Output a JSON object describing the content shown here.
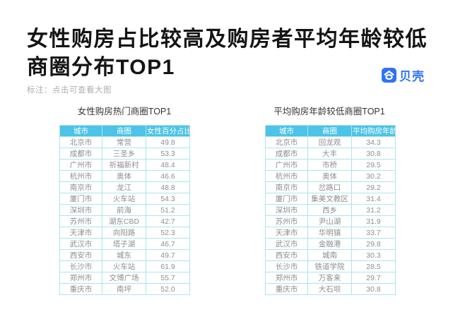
{
  "header": {
    "title_line1": "女性购房占比较高及购房者平均年龄较低",
    "title_line2": "商圈分布TOP1",
    "brand": "贝壳",
    "note": "标注：点击可查看大图"
  },
  "colors": {
    "brand_blue": "#3072F6",
    "table_header_bg": "#4CC3E7",
    "table_border": "#ABE5F0",
    "cell_text": "#8E8E8E",
    "title_text": "#141414",
    "note_text": "#AFAFAF"
  },
  "chart_data": [
    {
      "type": "table",
      "title": "女性购房热门商圈TOP1",
      "columns": [
        "城市",
        "商圈",
        "女性百分占比"
      ],
      "rows": [
        [
          "北京市",
          "常营",
          "49.8"
        ],
        [
          "成都市",
          "三圣乡",
          "53.3"
        ],
        [
          "广州市",
          "祈福新村",
          "48.4"
        ],
        [
          "杭州市",
          "奥体",
          "46.6"
        ],
        [
          "南京市",
          "龙江",
          "48.8"
        ],
        [
          "厦门市",
          "火车站",
          "54.3"
        ],
        [
          "深圳市",
          "前海",
          "51.2"
        ],
        [
          "苏州市",
          "湖东CBD",
          "42.7"
        ],
        [
          "天津市",
          "向阳路",
          "52.3"
        ],
        [
          "武汉市",
          "塔子湖",
          "46.7"
        ],
        [
          "西安市",
          "城东",
          "49.7"
        ],
        [
          "长沙市",
          "火车站",
          "61.9"
        ],
        [
          "郑州市",
          "文博广场",
          "55.7"
        ],
        [
          "重庆市",
          "南坪",
          "52.0"
        ]
      ]
    },
    {
      "type": "table",
      "title": "平均购房年龄较低商圈TOP1",
      "columns": [
        "城市",
        "商圈",
        "平均购房年龄"
      ],
      "rows": [
        [
          "北京市",
          "回龙观",
          "34.3"
        ],
        [
          "成都市",
          "大丰",
          "30.8"
        ],
        [
          "广州市",
          "市桥",
          "29.5"
        ],
        [
          "杭州市",
          "奥体",
          "30.2"
        ],
        [
          "南京市",
          "岔路口",
          "29.2"
        ],
        [
          "厦门市",
          "集美文教区",
          "31.4"
        ],
        [
          "深圳市",
          "西乡",
          "31.2"
        ],
        [
          "苏州市",
          "尹山湖",
          "31.9"
        ],
        [
          "天津市",
          "华明镇",
          "33.7"
        ],
        [
          "武汉市",
          "金融港",
          "29.8"
        ],
        [
          "西安市",
          "城南",
          "30.3"
        ],
        [
          "长沙市",
          "铁道学院",
          "28.5"
        ],
        [
          "郑州市",
          "万客来",
          "29.7"
        ],
        [
          "重庆市",
          "大石坝",
          "30.8"
        ]
      ]
    }
  ]
}
